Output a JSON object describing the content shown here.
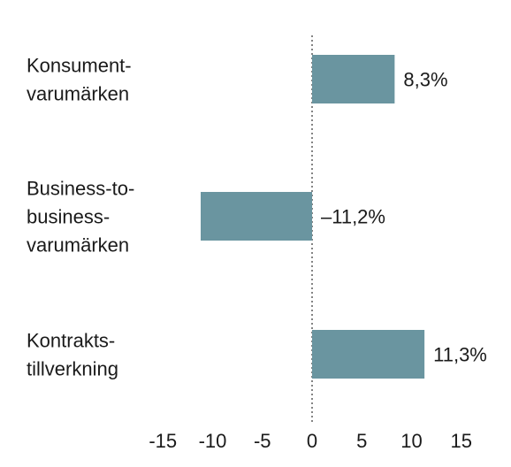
{
  "chart_data": {
    "type": "bar",
    "orientation": "horizontal",
    "categories": [
      [
        "Konsument-",
        "varumärken"
      ],
      [
        "Business-to-",
        "business-",
        "varumärken"
      ],
      [
        "Kontrakts-",
        "tillverkning"
      ]
    ],
    "values": [
      8.3,
      -11.2,
      11.3
    ],
    "value_labels": [
      "8,3%",
      "–11,2%",
      "11,3%"
    ],
    "xlim": [
      -15,
      15
    ],
    "xticks": [
      -15,
      -10,
      -5,
      0,
      5,
      10,
      15
    ],
    "xtick_labels": [
      "-15",
      "-10",
      "-5",
      "0",
      "5",
      "10",
      "15"
    ],
    "zero_line": "dotted",
    "grid": false,
    "bar_color": "#6a95a0"
  }
}
